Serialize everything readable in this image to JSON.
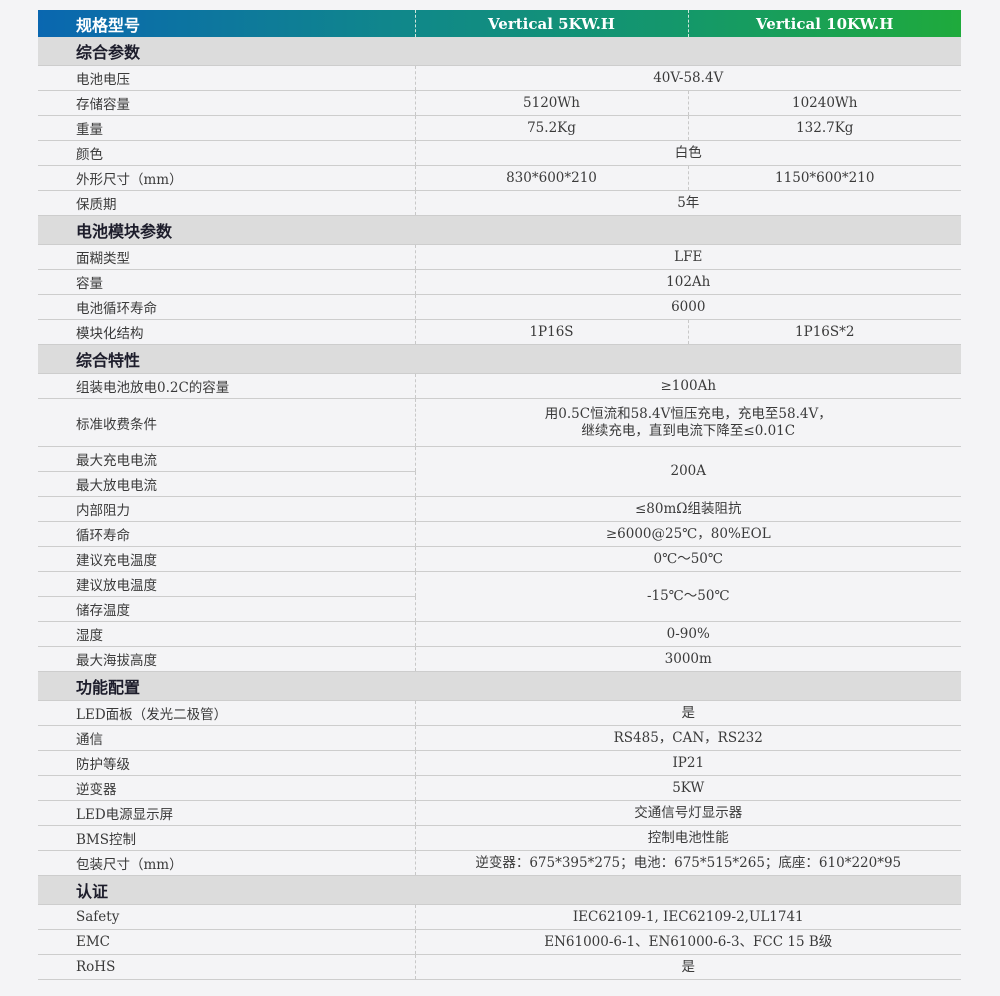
{
  "header": {
    "label": "规格型号",
    "models": [
      "Vertical 5KW.H",
      "Vertical 10KW.H"
    ]
  },
  "colors": {
    "header_gradient_start": "#0a67b0",
    "header_gradient_end": "#1faa3c",
    "section_bg": "#dcdcdc",
    "page_bg": "#f4f4f6"
  },
  "sections": [
    {
      "title": "综合参数",
      "rows": [
        {
          "label": "电池电压",
          "values": [
            "40V-58.4V"
          ]
        },
        {
          "label": "存储容量",
          "values": [
            "5120Wh",
            "10240Wh"
          ]
        },
        {
          "label": "重量",
          "values": [
            "75.2Kg",
            "132.7Kg"
          ]
        },
        {
          "label": "颜色",
          "values": [
            "白色"
          ]
        },
        {
          "label": "外形尺寸（mm）",
          "values": [
            "830*600*210",
            "1150*600*210"
          ]
        },
        {
          "label": "保质期",
          "values": [
            "5年"
          ]
        }
      ]
    },
    {
      "title": "电池模块参数",
      "rows": [
        {
          "label": "面糊类型",
          "values": [
            "LFE"
          ]
        },
        {
          "label": "容量",
          "values": [
            "102Ah"
          ]
        },
        {
          "label": "电池循环寿命",
          "values": [
            "6000"
          ]
        },
        {
          "label": "模块化结构",
          "values": [
            "1P16S",
            "1P16S*2"
          ]
        }
      ]
    },
    {
      "title": "综合特性",
      "rows": [
        {
          "label": "组装电池放电0.2C的容量",
          "values": [
            "≥100Ah"
          ]
        },
        {
          "label": "标准收费条件",
          "values": [
            "用0.5C恒流和58.4V恒压充电，充电至58.4V，\n继续充电，直到电流下降至≤0.01C"
          ],
          "tall": true
        },
        {
          "label": "最大充电电流",
          "values": [
            "200A"
          ],
          "rowspan": 2
        },
        {
          "label": "最大放电电流",
          "values": []
        },
        {
          "label": "内部阻力",
          "values": [
            "≤80mΩ组装阻抗"
          ]
        },
        {
          "label": "循环寿命",
          "values": [
            "≥6000@25℃，80%EOL"
          ]
        },
        {
          "label": "建议充电温度",
          "values": [
            "0℃～50℃"
          ]
        },
        {
          "label": "建议放电温度",
          "values": [
            "-15℃～50℃"
          ],
          "rowspan": 2
        },
        {
          "label": "储存温度",
          "values": []
        },
        {
          "label": "湿度",
          "values": [
            "0-90%"
          ]
        },
        {
          "label": "最大海拔高度",
          "values": [
            "3000m"
          ]
        }
      ]
    },
    {
      "title": "功能配置",
      "rows": [
        {
          "label": "LED面板（发光二极管）",
          "values": [
            "是"
          ]
        },
        {
          "label": "通信",
          "values": [
            "RS485，CAN，RS232"
          ]
        },
        {
          "label": "防护等级",
          "values": [
            "IP21"
          ]
        },
        {
          "label": "逆变器",
          "values": [
            "5KW"
          ]
        },
        {
          "label": "LED电源显示屏",
          "values": [
            "交通信号灯显示器"
          ]
        },
        {
          "label": "BMS控制",
          "values": [
            "控制电池性能"
          ]
        },
        {
          "label": "包装尺寸（mm）",
          "values": [
            "逆变器：675*395*275；电池：675*515*265；底座：610*220*95"
          ]
        }
      ]
    },
    {
      "title": "认证",
      "rows": [
        {
          "label": "Safety",
          "values": [
            "IEC62109-1, IEC62109-2,UL1741"
          ]
        },
        {
          "label": "EMC",
          "values": [
            "EN61000-6-1、EN61000-6-3、FCC 15 B级"
          ]
        },
        {
          "label": "RoHS",
          "values": [
            "是"
          ]
        }
      ]
    }
  ]
}
